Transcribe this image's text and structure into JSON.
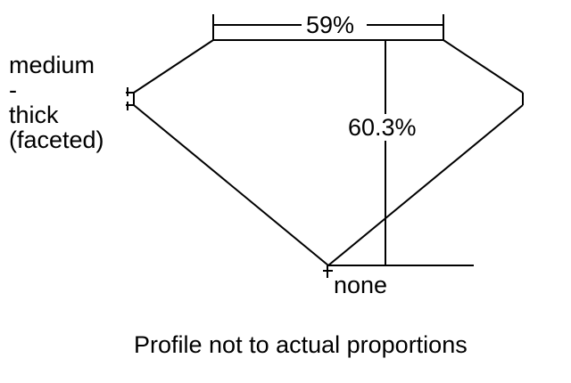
{
  "diagram": {
    "table_percent": "59%",
    "depth_percent": "60.3%",
    "girdle_label": [
      "medium",
      "-",
      "thick",
      "(faceted)"
    ],
    "culet_label": "none",
    "caption": "Profile not to actual proportions",
    "line_color": "#000000"
  }
}
